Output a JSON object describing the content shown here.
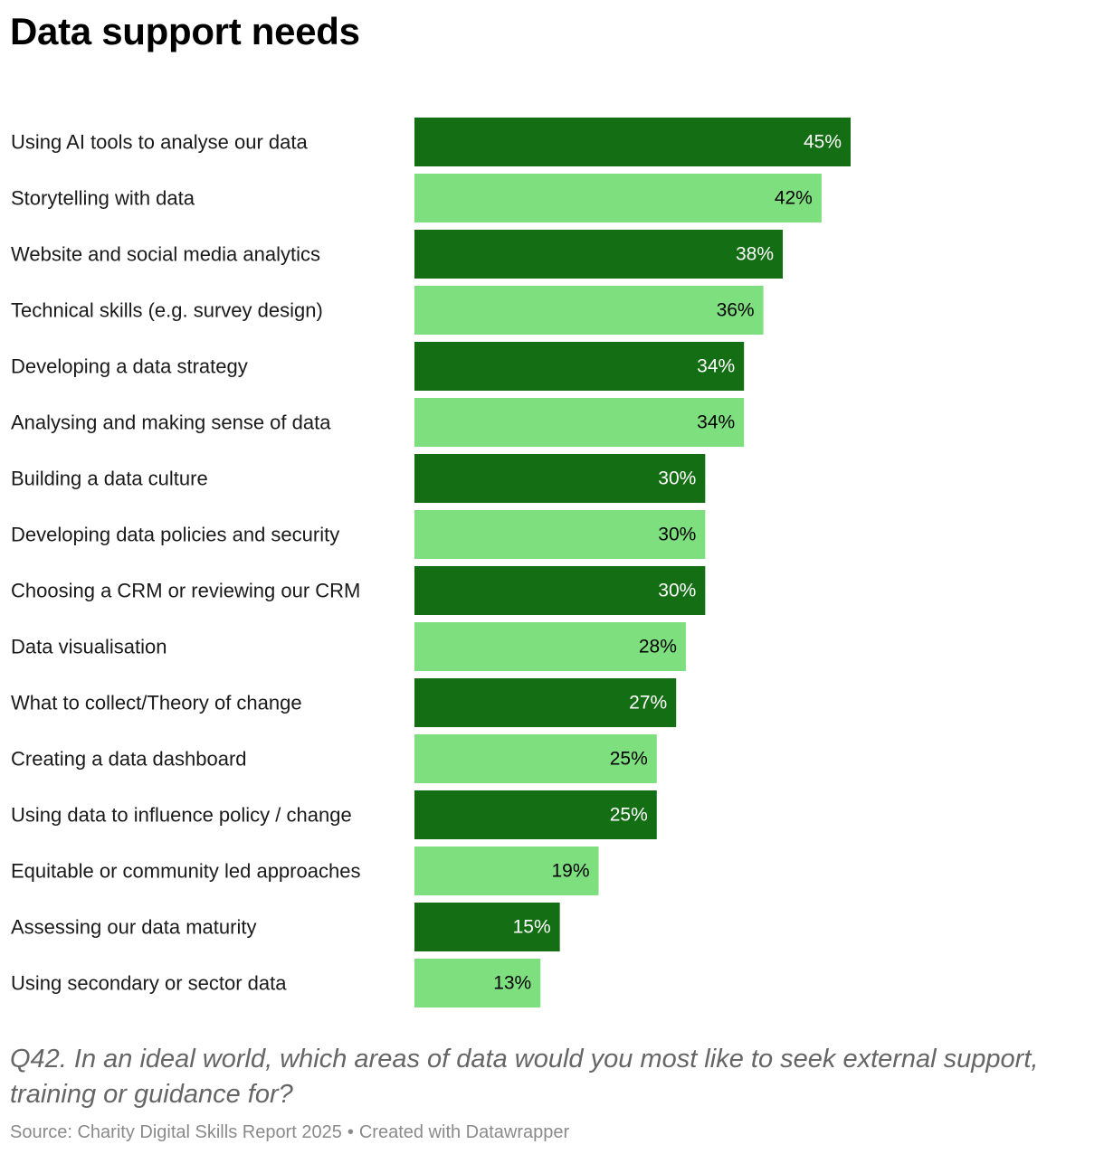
{
  "title": "Data support needs",
  "colors": {
    "dark": "#146f14",
    "light": "#7edf7e",
    "label_on_dark": "#ffffff",
    "label_on_light": "#000000"
  },
  "chart_data": {
    "type": "bar",
    "orientation": "horizontal",
    "title": "Data support needs",
    "value_suffix": "%",
    "xlim": [
      0,
      45
    ],
    "grid": false,
    "categories": [
      "Using AI tools to analyse our data",
      "Storytelling with data",
      "Website and social media analytics",
      "Technical skills (e.g. survey design)",
      "Developing a data strategy",
      "Analysing and making sense of data",
      "Building a data culture",
      "Developing data policies and security",
      "Choosing a CRM or reviewing our CRM",
      "Data visualisation",
      "What to collect/Theory of change",
      "Creating a data dashboard",
      "Using data to influence policy / change",
      "Equitable or community led approaches",
      "Assessing our data maturity",
      "Using secondary or sector data"
    ],
    "values": [
      45,
      42,
      38,
      36,
      34,
      34,
      30,
      30,
      30,
      28,
      27,
      25,
      25,
      19,
      15,
      13
    ],
    "bar_colors": "alternating dark / light, starting with dark"
  },
  "question": "Q42. In an ideal world, which areas of data would you most like to seek external support, training or guidance for?",
  "footer": {
    "source": "Source: Charity Digital Skills Report 2025",
    "separator": "•",
    "credit": "Created with Datawrapper"
  }
}
